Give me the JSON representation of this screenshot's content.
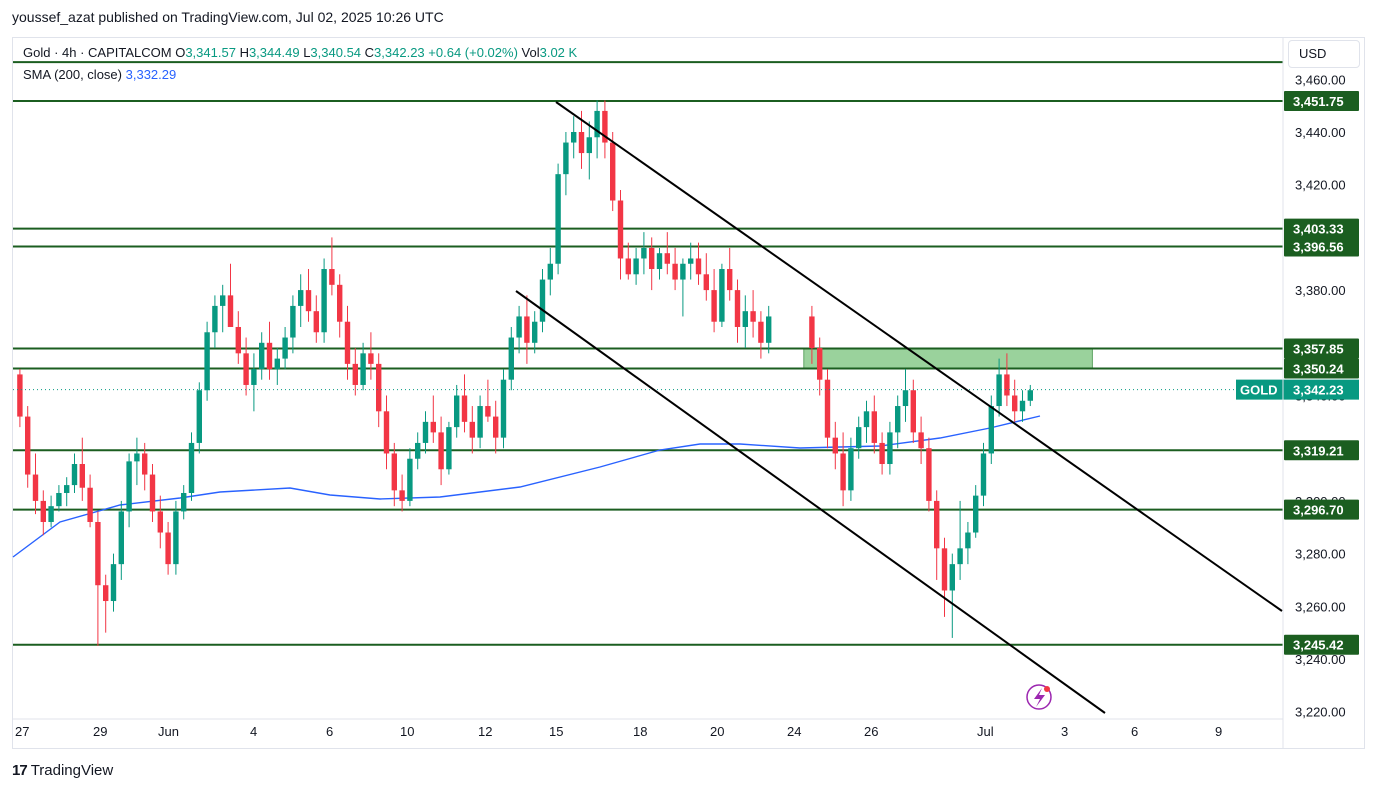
{
  "header": {
    "publish_line": "youssef_azat published on TradingView.com, Jul 02, 2025 10:26 UTC"
  },
  "legend": {
    "symbol": "Gold · 4h · CAPITALCOM",
    "open_label": "O",
    "open": "3,341.57",
    "high_label": "H",
    "high": "3,344.49",
    "low_label": "L",
    "low": "3,340.54",
    "close_label": "C",
    "close": "3,342.23",
    "change": "+0.64 (+0.02%)",
    "vol_label": "Vol",
    "vol": "3.02 K",
    "sma_label": "SMA (200, close)",
    "sma_value": "3,332.29"
  },
  "currency": "USD",
  "footer": {
    "brand": "TradingView"
  },
  "colors": {
    "up": "#089981",
    "down": "#f23645",
    "level_line": "#1b5e20",
    "level_label_bg": "#1b5e20",
    "sma": "#2962ff",
    "zone_fill": "#81c784",
    "price_tag_bg": "#089981"
  },
  "chart_data": {
    "type": "candlestick",
    "symbol": "GOLD",
    "timeframe": "4h",
    "ylim": [
      3216,
      3468
    ],
    "y_ticks": [
      "3,220.00",
      "3,240.00",
      "3,260.00",
      "3,280.00",
      "3,300.00",
      "3,320.00",
      "3,340.00",
      "3,360.00",
      "3,380.00",
      "3,400.00",
      "3,420.00",
      "3,440.00",
      "3,460.00"
    ],
    "y_tick_values": [
      3220,
      3240,
      3260,
      3280,
      3300,
      3320,
      3340,
      3360,
      3380,
      3400,
      3420,
      3440,
      3460
    ],
    "x_ticks": [
      "27",
      "29",
      "Jun",
      "4",
      "6",
      "10",
      "12",
      "15",
      "18",
      "20",
      "24",
      "26",
      "Jul",
      "3",
      "6",
      "9"
    ],
    "horizontal_levels": [
      {
        "value": 3451.75,
        "label": "3,451.75"
      },
      {
        "value": 3403.33,
        "label": "3,403.33"
      },
      {
        "value": 3396.56,
        "label": "3,396.56"
      },
      {
        "value": 3357.85,
        "label": "3,357.85"
      },
      {
        "value": 3350.24,
        "label": "3,350.24"
      },
      {
        "value": 3319.21,
        "label": "3,319.21"
      },
      {
        "value": 3296.7,
        "label": "3,296.70"
      },
      {
        "value": 3245.42,
        "label": "3,245.42"
      }
    ],
    "top_line_value": 3466.5,
    "current_price": {
      "label": "GOLD",
      "value": "3,342.23"
    },
    "zone": {
      "from_bar": 101,
      "to_bar": 138,
      "low": 3350.24,
      "high": 3357.85
    },
    "trendlines": [
      {
        "from": {
          "bar": 67,
          "price": 3451.75
        },
        "to": {
          "bar": 157,
          "price": 3258
        }
      },
      {
        "from": {
          "bar": 61,
          "price": 3382
        },
        "to": {
          "bar": 132,
          "price": 3218
        }
      }
    ],
    "candles_ohlc": [
      [
        3348,
        3350,
        3328,
        3332
      ],
      [
        3332,
        3336,
        3305,
        3310
      ],
      [
        3310,
        3318,
        3295,
        3300
      ],
      [
        3300,
        3304,
        3287,
        3292
      ],
      [
        3292,
        3302,
        3290,
        3298
      ],
      [
        3298,
        3306,
        3296,
        3303
      ],
      [
        3303,
        3309,
        3298,
        3306
      ],
      [
        3306,
        3318,
        3303,
        3314
      ],
      [
        3314,
        3324,
        3300,
        3305
      ],
      [
        3305,
        3310,
        3290,
        3292
      ],
      [
        3292,
        3296,
        3245,
        3268
      ],
      [
        3268,
        3272,
        3250,
        3262
      ],
      [
        3262,
        3280,
        3258,
        3276
      ],
      [
        3276,
        3300,
        3270,
        3296
      ],
      [
        3296,
        3318,
        3290,
        3315
      ],
      [
        3315,
        3324,
        3306,
        3318
      ],
      [
        3318,
        3322,
        3304,
        3310
      ],
      [
        3310,
        3314,
        3292,
        3296
      ],
      [
        3296,
        3302,
        3282,
        3288
      ],
      [
        3288,
        3292,
        3272,
        3276
      ],
      [
        3276,
        3300,
        3272,
        3296
      ],
      [
        3296,
        3306,
        3293,
        3303
      ],
      [
        3303,
        3326,
        3300,
        3322
      ],
      [
        3322,
        3345,
        3318,
        3342
      ],
      [
        3342,
        3368,
        3338,
        3364
      ],
      [
        3364,
        3378,
        3358,
        3374
      ],
      [
        3374,
        3382,
        3364,
        3378
      ],
      [
        3378,
        3390,
        3370,
        3366
      ],
      [
        3366,
        3372,
        3352,
        3356
      ],
      [
        3356,
        3362,
        3340,
        3344
      ],
      [
        3344,
        3356,
        3334,
        3350
      ],
      [
        3350,
        3364,
        3346,
        3360
      ],
      [
        3360,
        3368,
        3346,
        3350
      ],
      [
        3350,
        3358,
        3344,
        3354
      ],
      [
        3354,
        3366,
        3350,
        3362
      ],
      [
        3362,
        3378,
        3356,
        3374
      ],
      [
        3374,
        3386,
        3366,
        3380
      ],
      [
        3380,
        3388,
        3368,
        3372
      ],
      [
        3372,
        3378,
        3360,
        3364
      ],
      [
        3364,
        3392,
        3360,
        3388
      ],
      [
        3388,
        3400,
        3378,
        3382
      ],
      [
        3382,
        3386,
        3362,
        3368
      ],
      [
        3368,
        3374,
        3346,
        3352
      ],
      [
        3352,
        3358,
        3340,
        3344
      ],
      [
        3344,
        3360,
        3342,
        3356
      ],
      [
        3356,
        3364,
        3346,
        3352
      ],
      [
        3352,
        3356,
        3328,
        3334
      ],
      [
        3334,
        3340,
        3312,
        3318
      ],
      [
        3318,
        3322,
        3298,
        3304
      ],
      [
        3304,
        3310,
        3296,
        3300
      ],
      [
        3300,
        3320,
        3298,
        3316
      ],
      [
        3316,
        3326,
        3312,
        3322
      ],
      [
        3322,
        3334,
        3318,
        3330
      ],
      [
        3330,
        3340,
        3322,
        3326
      ],
      [
        3326,
        3332,
        3306,
        3312
      ],
      [
        3312,
        3330,
        3310,
        3328
      ],
      [
        3328,
        3344,
        3324,
        3340
      ],
      [
        3340,
        3348,
        3326,
        3330
      ],
      [
        3330,
        3336,
        3318,
        3324
      ],
      [
        3324,
        3340,
        3320,
        3336
      ],
      [
        3336,
        3346,
        3330,
        3332
      ],
      [
        3332,
        3338,
        3318,
        3324
      ],
      [
        3324,
        3350,
        3320,
        3346
      ],
      [
        3346,
        3366,
        3342,
        3362
      ],
      [
        3362,
        3374,
        3356,
        3370
      ],
      [
        3370,
        3378,
        3352,
        3360
      ],
      [
        3360,
        3372,
        3356,
        3368
      ],
      [
        3368,
        3388,
        3364,
        3384
      ],
      [
        3384,
        3396,
        3378,
        3390
      ],
      [
        3390,
        3428,
        3386,
        3424
      ],
      [
        3424,
        3440,
        3416,
        3436
      ],
      [
        3436,
        3446,
        3430,
        3440
      ],
      [
        3440,
        3448,
        3426,
        3432
      ],
      [
        3432,
        3444,
        3422,
        3438
      ],
      [
        3438,
        3452,
        3430,
        3448
      ],
      [
        3448,
        3452,
        3430,
        3436
      ],
      [
        3436,
        3440,
        3410,
        3414
      ],
      [
        3414,
        3418,
        3384,
        3392
      ],
      [
        3392,
        3398,
        3384,
        3386
      ],
      [
        3386,
        3396,
        3382,
        3392
      ],
      [
        3392,
        3402,
        3386,
        3396
      ],
      [
        3396,
        3400,
        3380,
        3388
      ],
      [
        3388,
        3396,
        3384,
        3394
      ],
      [
        3394,
        3402,
        3386,
        3390
      ],
      [
        3390,
        3396,
        3380,
        3384
      ],
      [
        3384,
        3392,
        3370,
        3390
      ],
      [
        3390,
        3398,
        3384,
        3392
      ],
      [
        3392,
        3398,
        3382,
        3386
      ],
      [
        3386,
        3394,
        3376,
        3380
      ],
      [
        3380,
        3388,
        3364,
        3368
      ],
      [
        3368,
        3390,
        3366,
        3388
      ],
      [
        3388,
        3396,
        3376,
        3380
      ],
      [
        3380,
        3384,
        3360,
        3366
      ],
      [
        3366,
        3378,
        3358,
        3372
      ],
      [
        3372,
        3380,
        3362,
        3368
      ],
      [
        3368,
        3372,
        3354,
        3360
      ],
      [
        3360,
        3374,
        3356,
        3370
      ]
    ]
  }
}
